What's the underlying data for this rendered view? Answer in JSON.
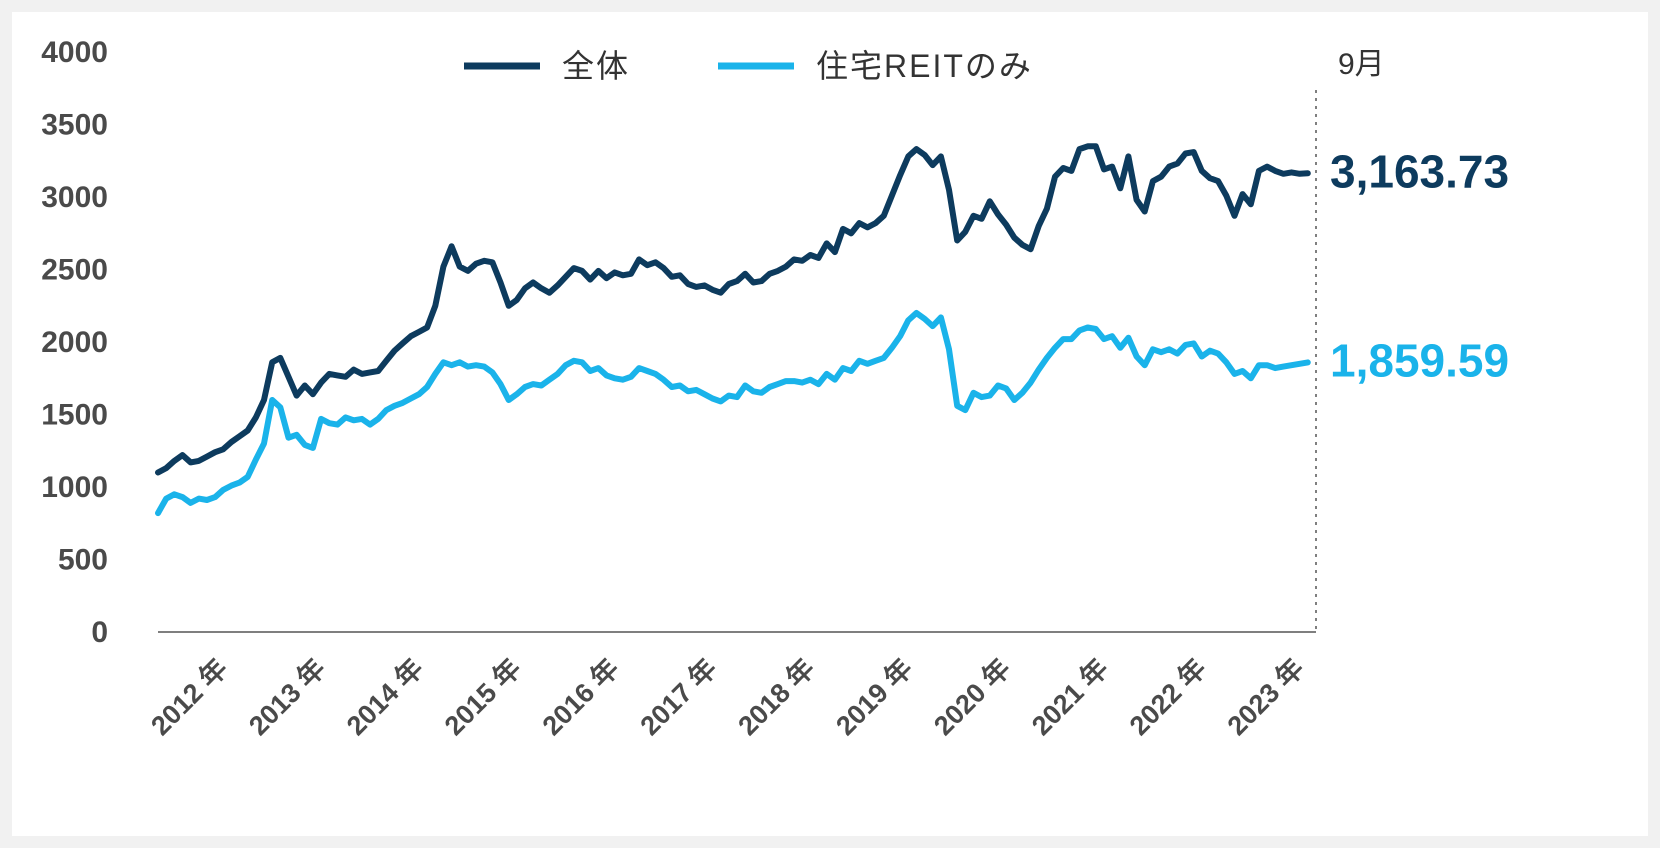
{
  "chart_data": {
    "type": "line",
    "title": "",
    "xlabel": "",
    "ylabel": "",
    "ylim": [
      0,
      4000
    ],
    "y_ticks": [
      "4000",
      "3500",
      "3000",
      "2500",
      "2000",
      "1500",
      "1000",
      "500",
      "0"
    ],
    "x_ticks": [
      "2012 年",
      "2013 年",
      "2014 年",
      "2015 年",
      "2016 年",
      "2017 年",
      "2018 年",
      "2019 年",
      "2020 年",
      "2021 年",
      "2022 年",
      "2023 年"
    ],
    "x_range": [
      "2011-11",
      "2023-09"
    ],
    "end_marker_label": "9月",
    "legend_position": "top",
    "grid": false,
    "series": [
      {
        "name": "全体",
        "color": "#0d3b5e",
        "end_label": "3,163.73",
        "points": [
          [
            "2011-11",
            1100
          ],
          [
            "2011-12",
            1130
          ],
          [
            "2012-01",
            1180
          ],
          [
            "2012-02",
            1220
          ],
          [
            "2012-03",
            1170
          ],
          [
            "2012-04",
            1180
          ],
          [
            "2012-05",
            1210
          ],
          [
            "2012-06",
            1240
          ],
          [
            "2012-07",
            1260
          ],
          [
            "2012-08",
            1310
          ],
          [
            "2012-09",
            1350
          ],
          [
            "2012-10",
            1390
          ],
          [
            "2012-11",
            1480
          ],
          [
            "2012-12",
            1600
          ],
          [
            "2013-01",
            1860
          ],
          [
            "2013-02",
            1890
          ],
          [
            "2013-03",
            1760
          ],
          [
            "2013-04",
            1630
          ],
          [
            "2013-05",
            1700
          ],
          [
            "2013-06",
            1640
          ],
          [
            "2013-07",
            1720
          ],
          [
            "2013-08",
            1780
          ],
          [
            "2013-09",
            1770
          ],
          [
            "2013-10",
            1760
          ],
          [
            "2013-11",
            1810
          ],
          [
            "2013-12",
            1780
          ],
          [
            "2014-01",
            1790
          ],
          [
            "2014-02",
            1800
          ],
          [
            "2014-03",
            1870
          ],
          [
            "2014-04",
            1940
          ],
          [
            "2014-05",
            1990
          ],
          [
            "2014-06",
            2040
          ],
          [
            "2014-07",
            2070
          ],
          [
            "2014-08",
            2100
          ],
          [
            "2014-09",
            2250
          ],
          [
            "2014-10",
            2520
          ],
          [
            "2014-11",
            2660
          ],
          [
            "2014-12",
            2520
          ],
          [
            "2015-01",
            2490
          ],
          [
            "2015-02",
            2540
          ],
          [
            "2015-03",
            2560
          ],
          [
            "2015-04",
            2550
          ],
          [
            "2015-05",
            2410
          ],
          [
            "2015-06",
            2250
          ],
          [
            "2015-07",
            2290
          ],
          [
            "2015-08",
            2370
          ],
          [
            "2015-09",
            2410
          ],
          [
            "2015-10",
            2370
          ],
          [
            "2015-11",
            2340
          ],
          [
            "2015-12",
            2390
          ],
          [
            "2016-01",
            2450
          ],
          [
            "2016-02",
            2510
          ],
          [
            "2016-03",
            2490
          ],
          [
            "2016-04",
            2430
          ],
          [
            "2016-05",
            2490
          ],
          [
            "2016-06",
            2440
          ],
          [
            "2016-07",
            2480
          ],
          [
            "2016-08",
            2460
          ],
          [
            "2016-09",
            2470
          ],
          [
            "2016-10",
            2570
          ],
          [
            "2016-11",
            2530
          ],
          [
            "2016-12",
            2550
          ],
          [
            "2017-01",
            2510
          ],
          [
            "2017-02",
            2450
          ],
          [
            "2017-03",
            2460
          ],
          [
            "2017-04",
            2400
          ],
          [
            "2017-05",
            2380
          ],
          [
            "2017-06",
            2390
          ],
          [
            "2017-07",
            2360
          ],
          [
            "2017-08",
            2340
          ],
          [
            "2017-09",
            2400
          ],
          [
            "2017-10",
            2420
          ],
          [
            "2017-11",
            2470
          ],
          [
            "2017-12",
            2410
          ],
          [
            "2018-01",
            2420
          ],
          [
            "2018-02",
            2470
          ],
          [
            "2018-03",
            2490
          ],
          [
            "2018-04",
            2520
          ],
          [
            "2018-05",
            2570
          ],
          [
            "2018-06",
            2560
          ],
          [
            "2018-07",
            2600
          ],
          [
            "2018-08",
            2580
          ],
          [
            "2018-09",
            2680
          ],
          [
            "2018-10",
            2620
          ],
          [
            "2018-11",
            2780
          ],
          [
            "2018-12",
            2750
          ],
          [
            "2019-01",
            2820
          ],
          [
            "2019-02",
            2790
          ],
          [
            "2019-03",
            2820
          ],
          [
            "2019-04",
            2870
          ],
          [
            "2019-05",
            3010
          ],
          [
            "2019-06",
            3150
          ],
          [
            "2019-07",
            3280
          ],
          [
            "2019-08",
            3330
          ],
          [
            "2019-09",
            3290
          ],
          [
            "2019-10",
            3220
          ],
          [
            "2019-11",
            3280
          ],
          [
            "2019-12",
            3050
          ],
          [
            "2020-01",
            2700
          ],
          [
            "2020-02",
            2760
          ],
          [
            "2020-03",
            2870
          ],
          [
            "2020-04",
            2850
          ],
          [
            "2020-05",
            2970
          ],
          [
            "2020-06",
            2880
          ],
          [
            "2020-07",
            2810
          ],
          [
            "2020-08",
            2720
          ],
          [
            "2020-09",
            2670
          ],
          [
            "2020-10",
            2640
          ],
          [
            "2020-11",
            2800
          ],
          [
            "2020-12",
            2920
          ],
          [
            "2021-01",
            3140
          ],
          [
            "2021-02",
            3200
          ],
          [
            "2021-03",
            3180
          ],
          [
            "2021-04",
            3330
          ],
          [
            "2021-05",
            3350
          ],
          [
            "2021-06",
            3350
          ],
          [
            "2021-07",
            3190
          ],
          [
            "2021-08",
            3210
          ],
          [
            "2021-09",
            3060
          ],
          [
            "2021-10",
            3280
          ],
          [
            "2021-11",
            2980
          ],
          [
            "2021-12",
            2900
          ],
          [
            "2022-01",
            3110
          ],
          [
            "2022-02",
            3140
          ],
          [
            "2022-03",
            3210
          ],
          [
            "2022-04",
            3230
          ],
          [
            "2022-05",
            3300
          ],
          [
            "2022-06",
            3310
          ],
          [
            "2022-07",
            3180
          ],
          [
            "2022-08",
            3130
          ],
          [
            "2022-09",
            3110
          ],
          [
            "2022-10",
            3010
          ],
          [
            "2022-11",
            2870
          ],
          [
            "2022-12",
            3020
          ],
          [
            "2023-01",
            2950
          ],
          [
            "2023-02",
            3180
          ],
          [
            "2023-03",
            3210
          ],
          [
            "2023-04",
            3180
          ],
          [
            "2023-05",
            3160
          ],
          [
            "2023-06",
            3170
          ],
          [
            "2023-07",
            3160
          ],
          [
            "2023-08",
            3163.73
          ]
        ]
      },
      {
        "name": "住宅REITのみ",
        "color": "#1ab3ea",
        "end_label": "1,859.59",
        "points": [
          [
            "2011-11",
            820
          ],
          [
            "2011-12",
            920
          ],
          [
            "2012-01",
            950
          ],
          [
            "2012-02",
            930
          ],
          [
            "2012-03",
            890
          ],
          [
            "2012-04",
            920
          ],
          [
            "2012-05",
            910
          ],
          [
            "2012-06",
            930
          ],
          [
            "2012-07",
            980
          ],
          [
            "2012-08",
            1010
          ],
          [
            "2012-09",
            1030
          ],
          [
            "2012-10",
            1070
          ],
          [
            "2012-11",
            1190
          ],
          [
            "2012-12",
            1300
          ],
          [
            "2013-01",
            1600
          ],
          [
            "2013-02",
            1550
          ],
          [
            "2013-03",
            1340
          ],
          [
            "2013-04",
            1360
          ],
          [
            "2013-05",
            1290
          ],
          [
            "2013-06",
            1270
          ],
          [
            "2013-07",
            1470
          ],
          [
            "2013-08",
            1440
          ],
          [
            "2013-09",
            1430
          ],
          [
            "2013-10",
            1480
          ],
          [
            "2013-11",
            1460
          ],
          [
            "2013-12",
            1470
          ],
          [
            "2014-01",
            1430
          ],
          [
            "2014-02",
            1470
          ],
          [
            "2014-03",
            1530
          ],
          [
            "2014-04",
            1560
          ],
          [
            "2014-05",
            1580
          ],
          [
            "2014-06",
            1610
          ],
          [
            "2014-07",
            1640
          ],
          [
            "2014-08",
            1690
          ],
          [
            "2014-09",
            1780
          ],
          [
            "2014-10",
            1860
          ],
          [
            "2014-11",
            1840
          ],
          [
            "2014-12",
            1860
          ],
          [
            "2015-01",
            1830
          ],
          [
            "2015-02",
            1840
          ],
          [
            "2015-03",
            1830
          ],
          [
            "2015-04",
            1790
          ],
          [
            "2015-05",
            1710
          ],
          [
            "2015-06",
            1600
          ],
          [
            "2015-07",
            1640
          ],
          [
            "2015-08",
            1690
          ],
          [
            "2015-09",
            1710
          ],
          [
            "2015-10",
            1700
          ],
          [
            "2015-11",
            1740
          ],
          [
            "2015-12",
            1780
          ],
          [
            "2016-01",
            1840
          ],
          [
            "2016-02",
            1870
          ],
          [
            "2016-03",
            1860
          ],
          [
            "2016-04",
            1800
          ],
          [
            "2016-05",
            1820
          ],
          [
            "2016-06",
            1770
          ],
          [
            "2016-07",
            1750
          ],
          [
            "2016-08",
            1740
          ],
          [
            "2016-09",
            1760
          ],
          [
            "2016-10",
            1820
          ],
          [
            "2016-11",
            1800
          ],
          [
            "2016-12",
            1780
          ],
          [
            "2017-01",
            1740
          ],
          [
            "2017-02",
            1690
          ],
          [
            "2017-03",
            1700
          ],
          [
            "2017-04",
            1660
          ],
          [
            "2017-05",
            1670
          ],
          [
            "2017-06",
            1640
          ],
          [
            "2017-07",
            1610
          ],
          [
            "2017-08",
            1590
          ],
          [
            "2017-09",
            1630
          ],
          [
            "2017-10",
            1620
          ],
          [
            "2017-11",
            1700
          ],
          [
            "2017-12",
            1660
          ],
          [
            "2018-01",
            1650
          ],
          [
            "2018-02",
            1690
          ],
          [
            "2018-03",
            1710
          ],
          [
            "2018-04",
            1730
          ],
          [
            "2018-05",
            1730
          ],
          [
            "2018-06",
            1720
          ],
          [
            "2018-07",
            1740
          ],
          [
            "2018-08",
            1710
          ],
          [
            "2018-09",
            1780
          ],
          [
            "2018-10",
            1740
          ],
          [
            "2018-11",
            1820
          ],
          [
            "2018-12",
            1800
          ],
          [
            "2019-01",
            1870
          ],
          [
            "2019-02",
            1850
          ],
          [
            "2019-03",
            1870
          ],
          [
            "2019-04",
            1890
          ],
          [
            "2019-05",
            1960
          ],
          [
            "2019-06",
            2040
          ],
          [
            "2019-07",
            2150
          ],
          [
            "2019-08",
            2200
          ],
          [
            "2019-09",
            2160
          ],
          [
            "2019-10",
            2110
          ],
          [
            "2019-11",
            2170
          ],
          [
            "2019-12",
            1950
          ],
          [
            "2020-01",
            1560
          ],
          [
            "2020-02",
            1530
          ],
          [
            "2020-03",
            1650
          ],
          [
            "2020-04",
            1620
          ],
          [
            "2020-05",
            1630
          ],
          [
            "2020-06",
            1700
          ],
          [
            "2020-07",
            1680
          ],
          [
            "2020-08",
            1600
          ],
          [
            "2020-09",
            1650
          ],
          [
            "2020-10",
            1720
          ],
          [
            "2020-11",
            1810
          ],
          [
            "2020-12",
            1890
          ],
          [
            "2021-01",
            1960
          ],
          [
            "2021-02",
            2020
          ],
          [
            "2021-03",
            2020
          ],
          [
            "2021-04",
            2080
          ],
          [
            "2021-05",
            2100
          ],
          [
            "2021-06",
            2090
          ],
          [
            "2021-07",
            2020
          ],
          [
            "2021-08",
            2040
          ],
          [
            "2021-09",
            1960
          ],
          [
            "2021-10",
            2030
          ],
          [
            "2021-11",
            1900
          ],
          [
            "2021-12",
            1840
          ],
          [
            "2022-01",
            1950
          ],
          [
            "2022-02",
            1930
          ],
          [
            "2022-03",
            1950
          ],
          [
            "2022-04",
            1920
          ],
          [
            "2022-05",
            1980
          ],
          [
            "2022-06",
            1990
          ],
          [
            "2022-07",
            1900
          ],
          [
            "2022-08",
            1940
          ],
          [
            "2022-09",
            1920
          ],
          [
            "2022-10",
            1860
          ],
          [
            "2022-11",
            1780
          ],
          [
            "2022-12",
            1800
          ],
          [
            "2023-01",
            1750
          ],
          [
            "2023-02",
            1840
          ],
          [
            "2023-03",
            1840
          ],
          [
            "2023-04",
            1820
          ],
          [
            "2023-05",
            1830
          ],
          [
            "2023-06",
            1840
          ],
          [
            "2023-07",
            1850
          ],
          [
            "2023-08",
            1859.59
          ]
        ]
      }
    ]
  }
}
